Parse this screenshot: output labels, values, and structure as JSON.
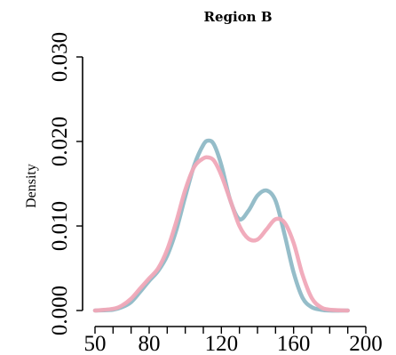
{
  "chart_data": {
    "type": "line",
    "title": "Region B",
    "xlabel": "",
    "ylabel": "Density",
    "xlim": [
      50,
      200
    ],
    "ylim": [
      0,
      0.03
    ],
    "x_ticks": [
      50,
      80,
      120,
      160,
      200
    ],
    "y_ticks": [
      0.0,
      0.01,
      0.02,
      0.03
    ],
    "y_tick_labels": [
      "0.000",
      "0.010",
      "0.020",
      "0.030"
    ],
    "grid": false,
    "legend": "none",
    "series": [
      {
        "color": "#8fb9c6",
        "x": [
          50,
          60,
          65,
          70,
          75,
          80,
          85,
          90,
          95,
          100,
          105,
          110,
          113,
          116,
          120,
          125,
          130,
          135,
          140,
          145,
          150,
          155,
          160,
          165,
          170,
          175,
          180,
          190
        ],
        "values": [
          0.0,
          0.0001,
          0.0004,
          0.001,
          0.0022,
          0.0035,
          0.0047,
          0.0065,
          0.0095,
          0.0135,
          0.0172,
          0.0196,
          0.0201,
          0.0196,
          0.0172,
          0.013,
          0.0108,
          0.0118,
          0.0136,
          0.0142,
          0.013,
          0.009,
          0.0045,
          0.0015,
          0.0004,
          0.0001,
          0.0,
          0.0
        ]
      },
      {
        "color": "#f0a8b8",
        "x": [
          50,
          60,
          65,
          70,
          75,
          80,
          85,
          90,
          95,
          100,
          105,
          110,
          113,
          116,
          120,
          125,
          130,
          135,
          140,
          145,
          150,
          155,
          160,
          165,
          170,
          175,
          180,
          190
        ],
        "values": [
          0.0,
          0.0002,
          0.0006,
          0.0014,
          0.0026,
          0.0038,
          0.005,
          0.0072,
          0.0105,
          0.0143,
          0.017,
          0.018,
          0.0181,
          0.0177,
          0.016,
          0.013,
          0.01,
          0.0085,
          0.0084,
          0.0096,
          0.0108,
          0.0104,
          0.008,
          0.0042,
          0.0015,
          0.0004,
          0.0001,
          0.0
        ]
      }
    ]
  }
}
